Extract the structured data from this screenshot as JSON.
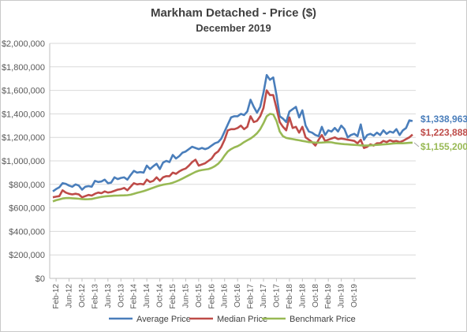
{
  "chart_data": {
    "type": "line",
    "title": "Markham Detached - Price ($)",
    "subtitle": "December 2019",
    "xlabel": "",
    "ylabel": "",
    "ylim": [
      0,
      2000000
    ],
    "y_ticks": [
      "$0",
      "$200,000",
      "$400,000",
      "$600,000",
      "$800,000",
      "$1,000,000",
      "$1,200,000",
      "$1,400,000",
      "$1,600,000",
      "$1,800,000",
      "$2,000,000"
    ],
    "x_tick_labels": [
      "Feb-12",
      "Jun-12",
      "Oct-12",
      "Feb-13",
      "Jun-13",
      "Oct-13",
      "Feb-14",
      "Jun-14",
      "Oct-14",
      "Feb-15",
      "Jun-15",
      "Oct-15",
      "Feb-16",
      "Jun-16",
      "Oct-16",
      "Feb-17",
      "Jun-17",
      "Oct-17",
      "Feb-18",
      "Jun-18",
      "Oct-18",
      "Feb-19",
      "Jun-19",
      "Oct-19"
    ],
    "x_start": "Jan-12",
    "x_end": "Dec-19",
    "grid": true,
    "legend_position": "bottom",
    "series": [
      {
        "name": "Average Price",
        "color": "#4a7ebb",
        "end_label": "$1,338,963",
        "values": [
          740000,
          760000,
          775000,
          810000,
          805000,
          790000,
          780000,
          800000,
          790000,
          755000,
          780000,
          785000,
          780000,
          830000,
          820000,
          825000,
          840000,
          810000,
          815000,
          860000,
          845000,
          855000,
          860000,
          840000,
          880000,
          915000,
          900000,
          905000,
          900000,
          960000,
          930000,
          955000,
          975000,
          930000,
          985000,
          1000000,
          990000,
          1050000,
          1020000,
          1040000,
          1070000,
          1080000,
          1100000,
          1120000,
          1110000,
          1100000,
          1110000,
          1100000,
          1110000,
          1130000,
          1150000,
          1160000,
          1190000,
          1250000,
          1310000,
          1370000,
          1380000,
          1380000,
          1400000,
          1390000,
          1420000,
          1520000,
          1460000,
          1410000,
          1460000,
          1580000,
          1730000,
          1690000,
          1710000,
          1560000,
          1380000,
          1360000,
          1330000,
          1420000,
          1440000,
          1460000,
          1370000,
          1430000,
          1300000,
          1250000,
          1240000,
          1220000,
          1210000,
          1290000,
          1220000,
          1260000,
          1250000,
          1280000,
          1250000,
          1300000,
          1270000,
          1200000,
          1220000,
          1230000,
          1210000,
          1310000,
          1180000,
          1220000,
          1230000,
          1215000,
          1240000,
          1220000,
          1260000,
          1230000,
          1250000,
          1240000,
          1270000,
          1220000,
          1260000,
          1280000,
          1345000,
          1338963
        ]
      },
      {
        "name": "Median Price",
        "color": "#be4b48",
        "end_label": "$1,223,888",
        "values": [
          690000,
          695000,
          700000,
          750000,
          730000,
          720000,
          715000,
          720000,
          715000,
          690000,
          700000,
          710000,
          705000,
          720000,
          730000,
          725000,
          740000,
          730000,
          735000,
          745000,
          755000,
          760000,
          770000,
          750000,
          780000,
          810000,
          800000,
          805000,
          800000,
          840000,
          820000,
          830000,
          860000,
          830000,
          860000,
          870000,
          870000,
          900000,
          890000,
          910000,
          925000,
          935000,
          960000,
          990000,
          1010000,
          960000,
          970000,
          980000,
          1000000,
          1020000,
          1060000,
          1080000,
          1120000,
          1180000,
          1260000,
          1270000,
          1270000,
          1280000,
          1300000,
          1270000,
          1290000,
          1380000,
          1330000,
          1340000,
          1380000,
          1450000,
          1600000,
          1560000,
          1560000,
          1450000,
          1330000,
          1290000,
          1260000,
          1370000,
          1280000,
          1290000,
          1240000,
          1290000,
          1200000,
          1180000,
          1160000,
          1130000,
          1180000,
          1220000,
          1170000,
          1180000,
          1190000,
          1200000,
          1185000,
          1190000,
          1185000,
          1180000,
          1175000,
          1170000,
          1150000,
          1180000,
          1110000,
          1120000,
          1140000,
          1130000,
          1150000,
          1150000,
          1170000,
          1160000,
          1175000,
          1165000,
          1170000,
          1160000,
          1170000,
          1185000,
          1200000,
          1223888
        ]
      },
      {
        "name": "Benchmark Price",
        "color": "#98b954",
        "end_label": "$1,155,200",
        "values": [
          655000,
          665000,
          672000,
          680000,
          683000,
          684000,
          682000,
          680000,
          678000,
          675000,
          673000,
          674000,
          676000,
          682000,
          688000,
          693000,
          697000,
          700000,
          702000,
          704000,
          705000,
          706000,
          707000,
          708000,
          712000,
          720000,
          728000,
          735000,
          742000,
          752000,
          762000,
          772000,
          782000,
          790000,
          797000,
          802000,
          806000,
          814000,
          824000,
          836000,
          850000,
          864000,
          878000,
          892000,
          906000,
          916000,
          922000,
          926000,
          930000,
          940000,
          955000,
          975000,
          1005000,
          1045000,
          1080000,
          1100000,
          1115000,
          1125000,
          1140000,
          1160000,
          1175000,
          1190000,
          1210000,
          1235000,
          1270000,
          1320000,
          1380000,
          1400000,
          1395000,
          1340000,
          1250000,
          1210000,
          1195000,
          1190000,
          1185000,
          1180000,
          1175000,
          1170000,
          1165000,
          1160000,
          1158000,
          1156000,
          1155000,
          1156000,
          1158000,
          1160000,
          1158000,
          1152000,
          1148000,
          1145000,
          1142000,
          1140000,
          1138000,
          1136000,
          1134000,
          1132000,
          1130000,
          1130000,
          1132000,
          1134000,
          1136000,
          1138000,
          1140000,
          1142000,
          1145000,
          1148000,
          1150000,
          1150000,
          1150000,
          1152000,
          1154000,
          1155200
        ]
      }
    ]
  }
}
